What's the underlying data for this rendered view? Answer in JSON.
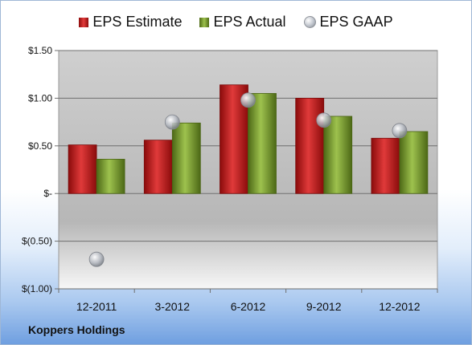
{
  "company": "Koppers Holdings",
  "colors": {
    "estimate": "#cc1f1f",
    "actual": "#7fa532",
    "gaap": "#b8bcc4"
  },
  "chart_data": {
    "type": "bar",
    "categories": [
      "12-2011",
      "3-2012",
      "6-2012",
      "9-2012",
      "12-2012"
    ],
    "series": [
      {
        "name": "EPS Estimate",
        "values": [
          0.51,
          0.56,
          1.14,
          1.0,
          0.58
        ]
      },
      {
        "name": "EPS Actual",
        "values": [
          0.36,
          0.74,
          1.05,
          0.81,
          0.65
        ]
      },
      {
        "name": "EPS GAAP",
        "type": "scatter",
        "values": [
          -0.69,
          0.75,
          0.98,
          0.77,
          0.66
        ]
      }
    ],
    "ylim": [
      -1.0,
      1.5
    ],
    "yticks": [
      -1.0,
      -0.5,
      0,
      0.5,
      1.0,
      1.5
    ],
    "ytick_labels": [
      "$(1.00)",
      "$(0.50)",
      "$-",
      "$0.50",
      "$1.00",
      "$1.50"
    ],
    "grid": true,
    "legend": "top"
  }
}
